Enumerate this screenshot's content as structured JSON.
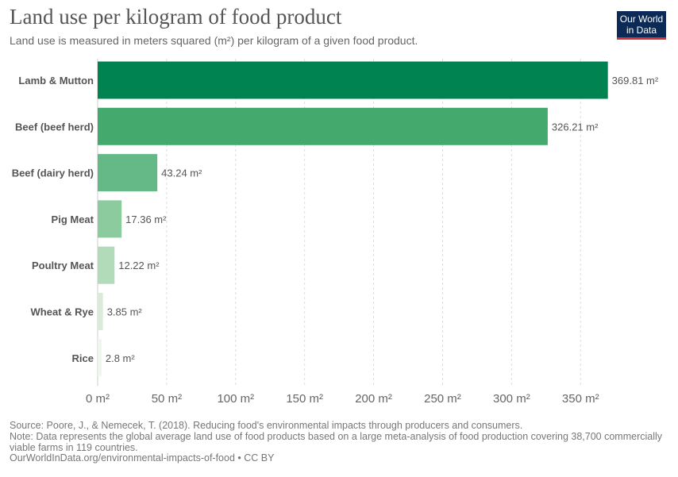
{
  "header": {
    "title": "Land use per kilogram of food product",
    "subtitle": "Land use is measured in meters squared (m²) per kilogram of a given food product.",
    "logo_line1": "Our World",
    "logo_line2": "in Data"
  },
  "chart_data": {
    "type": "bar",
    "orientation": "horizontal",
    "categories": [
      "Lamb & Mutton",
      "Beef (beef herd)",
      "Beef (dairy herd)",
      "Pig Meat",
      "Poultry Meat",
      "Wheat & Rye",
      "Rice"
    ],
    "values": [
      369.81,
      326.21,
      43.24,
      17.36,
      12.22,
      3.85,
      2.8
    ],
    "value_labels": [
      "369.81 m²",
      "326.21 m²",
      "43.24 m²",
      "17.36 m²",
      "12.22 m²",
      "3.85 m²",
      "2.8 m²"
    ],
    "colors": [
      "#008350",
      "#43a96d",
      "#64b987",
      "#8ccb9d",
      "#b2dbb9",
      "#d8ecd9",
      "#eef6ee"
    ],
    "xlim": [
      0,
      370
    ],
    "xticks": [
      0,
      50,
      100,
      150,
      200,
      250,
      300,
      350
    ],
    "xtick_labels": [
      "0 m²",
      "50 m²",
      "100 m²",
      "150 m²",
      "200 m²",
      "250 m²",
      "300 m²",
      "350 m²"
    ],
    "grid": true,
    "legend": "none"
  },
  "footer": {
    "source": "Source: Poore, J., & Nemecek, T. (2018). Reducing food's environmental impacts through producers and consumers.",
    "note": "Note: Data represents the global average land use of food products based on a large meta-analysis of food production covering 38,700 commercially viable farms in 119 countries.",
    "credit": "OurWorldInData.org/environmental-impacts-of-food • CC BY"
  }
}
